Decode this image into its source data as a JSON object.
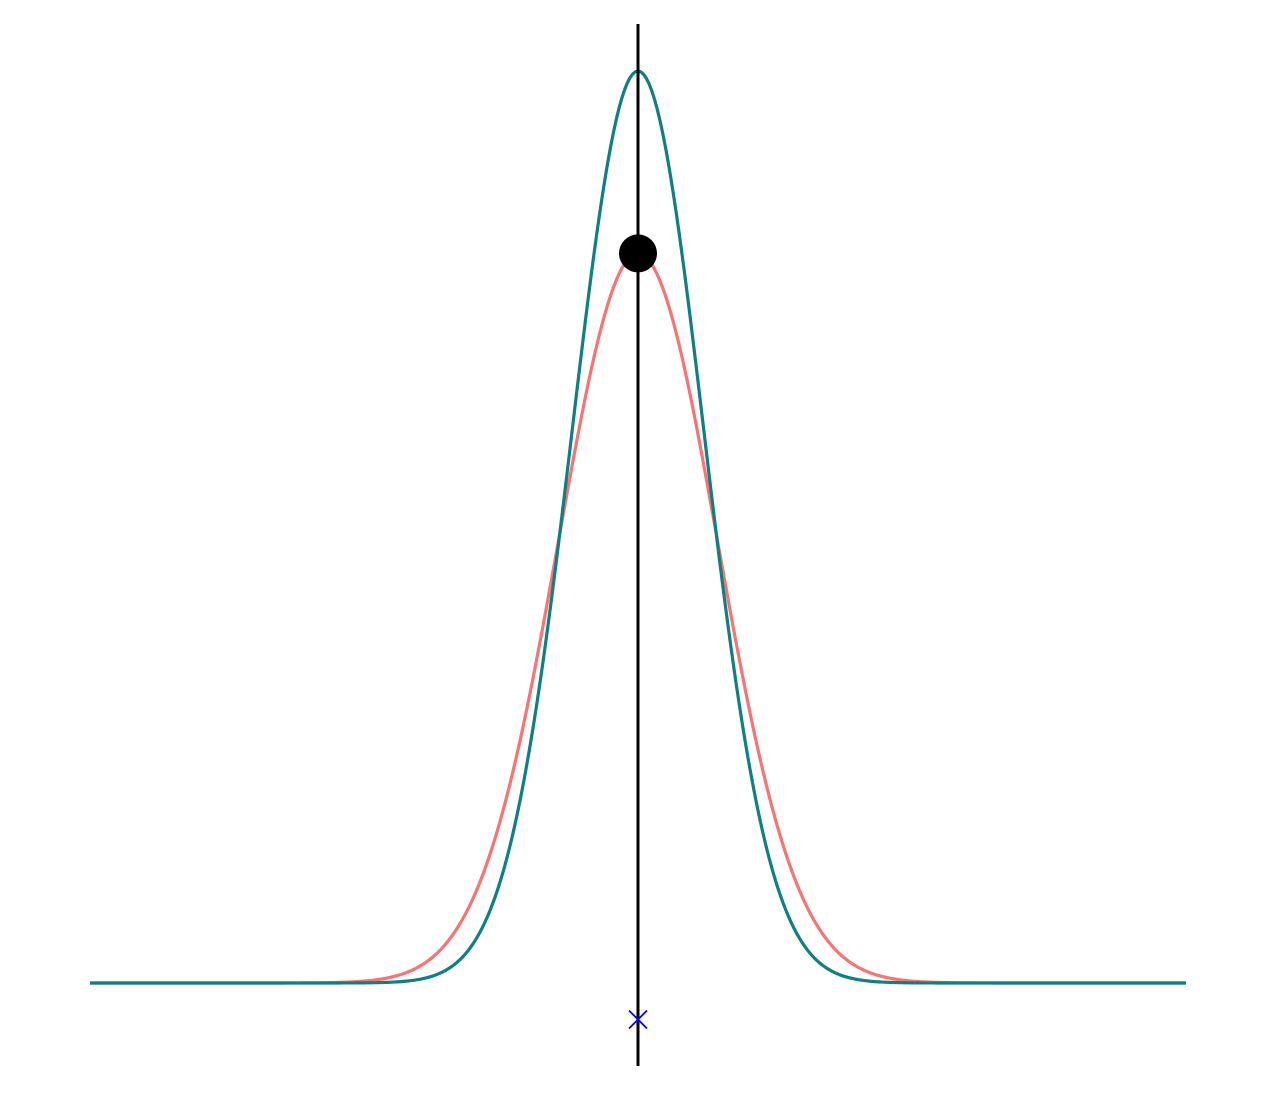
{
  "chart_data": {
    "type": "line",
    "title": "",
    "xlabel": "",
    "ylabel": "",
    "xlim": [
      -10,
      10
    ],
    "ylim": [
      0,
      1
    ],
    "grid": false,
    "legend": "none",
    "series": [
      {
        "color": "#f87474",
        "mu": 0,
        "sigma": 1.45,
        "peak": 0.8
      },
      {
        "color": "#0d8080",
        "mu": 0,
        "sigma": 1.2,
        "peak": 1.0
      }
    ],
    "vertical_line": {
      "x": 0,
      "color": "#000000"
    },
    "point": {
      "x": 0,
      "y": 0.8,
      "color": "#000000"
    },
    "marker": {
      "x": 0,
      "y": -0.04,
      "symbol": "x",
      "color": "#0000ff"
    }
  }
}
